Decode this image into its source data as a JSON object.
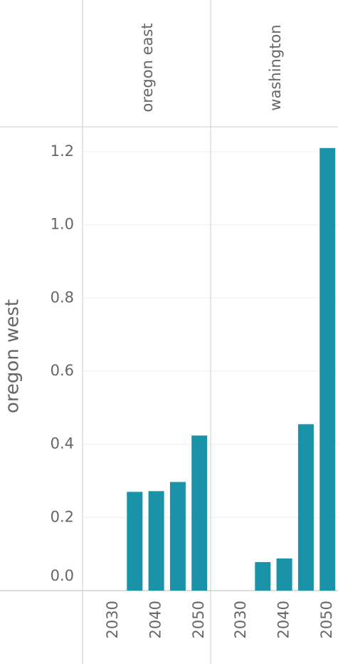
{
  "chart_data": {
    "type": "bar",
    "row_label": "oregon west",
    "categories": [
      "2030",
      null,
      "2040",
      null,
      "2050"
    ],
    "series": [
      {
        "name": "oregon east",
        "values": [
          null,
          0.27,
          0.272,
          0.297,
          0.424
        ]
      },
      {
        "name": "washington",
        "values": [
          null,
          0.078,
          0.088,
          0.455,
          1.21
        ]
      }
    ],
    "color": "#1a93a9",
    "ylim": [
      0,
      1.268
    ],
    "yticks": [
      {
        "value": 0,
        "label": "0.0"
      },
      0.2,
      0.4,
      0.6,
      0.8,
      {
        "value": 1,
        "label": "1.0"
      },
      1.2
    ],
    "grid": true
  }
}
